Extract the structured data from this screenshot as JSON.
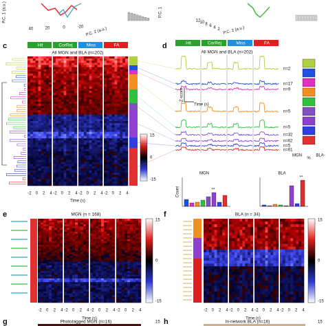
{
  "top": {
    "left_axis1": "P.C. 1 (a.u.)",
    "left_ticks": [
      "40",
      "20",
      "0",
      "-20"
    ],
    "left_axis2": "P.C. 2 (a.u.)",
    "right_ticks": [
      "12",
      "10",
      "8",
      "6",
      "4",
      "2"
    ],
    "right_axis2": "P.C. 2 (a.u.)",
    "right_axis1": "P.C. 1"
  },
  "panel_c": {
    "label": "c",
    "title": "All MGN and BLA (n=202)",
    "conditions": [
      "Hit",
      "CorRej",
      "Miss",
      "FA"
    ],
    "colorbar_ticks": [
      "15",
      "0",
      "-15"
    ],
    "xticks": [
      "-2",
      "0",
      "2",
      "4"
    ],
    "xlabel": "Time (s)"
  },
  "panel_d": {
    "label": "d",
    "title": "All MGN and BLA (n=202)",
    "conditions": [
      "Hit",
      "CorRej",
      "Miss",
      "FA"
    ],
    "scale_y": "Z-score",
    "scale_x": "Time (s)",
    "counts": [
      "n=2",
      "n=17",
      "n=9",
      "n=5",
      "n=5",
      "n=32",
      "n=62",
      "n=5",
      "n=61"
    ],
    "legend_left": "MGN",
    "legend_unit": "%",
    "legend_right": "BLA-",
    "bar_titles": [
      "MGN",
      "BLA"
    ],
    "bar_ylabel": "Count",
    "significance": "**"
  },
  "panel_e": {
    "label": "e",
    "title": "MGN (n = 168)",
    "colorbar_ticks": [
      "15",
      "0",
      "-15"
    ],
    "xticks": [
      "-2",
      "0",
      "2",
      "4"
    ],
    "xlabel": "Time (s)"
  },
  "panel_f": {
    "label": "f",
    "title": "BLA (n = 34)",
    "colorbar_ticks": [
      "15",
      "0",
      "-15"
    ],
    "xticks": [
      "-2",
      "0",
      "2",
      "4"
    ],
    "xlabel": "Time (s)"
  },
  "panel_g": {
    "label": "g",
    "title": "Phototagged MGN (n=16)",
    "colorbar_top": "15"
  },
  "panel_h": {
    "label": "h",
    "title": "In-network BLA (n=16)",
    "colorbar_top": "15"
  }
}
